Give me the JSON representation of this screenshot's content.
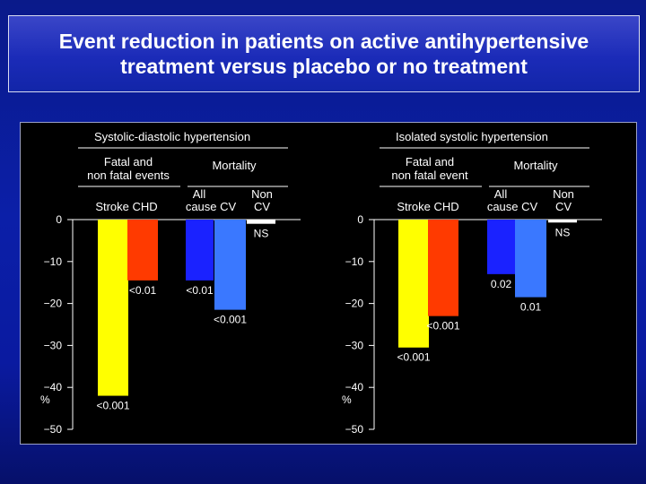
{
  "slide": {
    "title_line1": "Event reduction in patients on active antihypertensive",
    "title_line2": "treatment versus placebo or no treatment"
  },
  "colors": {
    "stroke": "#ffff00",
    "chd": "#ff3a00",
    "all_cause": "#1a22ff",
    "cv": "#3a78ff",
    "non_cv": "#ffffff"
  },
  "chart_data": [
    {
      "type": "bar",
      "title": "Systolic-diastolic hypertension",
      "groups": [
        {
          "label_line1": "Fatal and",
          "label_line2": "non fatal events"
        },
        {
          "label_line1": "Mortality",
          "label_line2": ""
        }
      ],
      "categories": [
        "Stroke",
        "CHD",
        "All cause",
        "CV",
        "Non CV"
      ],
      "header_row": {
        "fatal": "Stroke CHD",
        "all1": "All",
        "all2": "cause CV",
        "non1": "Non",
        "non2": "CV"
      },
      "values": [
        -42,
        -14.5,
        -14.5,
        -21.5,
        -1
      ],
      "annotations": [
        "<0.001",
        "<0.01",
        "<0.01",
        "<0.001",
        "NS"
      ],
      "ylim": [
        -50,
        0
      ],
      "yticks": [
        "0",
        "−10",
        "−20",
        "−30",
        "−40",
        "−50"
      ],
      "ylabel": "%"
    },
    {
      "type": "bar",
      "title": "Isolated systolic hypertension",
      "groups": [
        {
          "label_line1": "Fatal and",
          "label_line2": "non fatal event"
        },
        {
          "label_line1": "Mortality",
          "label_line2": ""
        }
      ],
      "categories": [
        "Stroke",
        "CHD",
        "All cause",
        "CV",
        "Non CV"
      ],
      "header_row": {
        "fatal": "Stroke CHD",
        "all1": "All",
        "all2": "cause CV",
        "non1": "Non",
        "non2": "CV"
      },
      "values": [
        -30.5,
        -23,
        -13,
        -18.5,
        -0.7
      ],
      "annotations": [
        "<0.001",
        "<0.001",
        "0.02",
        "0.01",
        "NS"
      ],
      "ylim": [
        -50,
        0
      ],
      "yticks": [
        "0",
        "−10",
        "−20",
        "−30",
        "−40",
        "−50"
      ],
      "ylabel": "%"
    }
  ]
}
